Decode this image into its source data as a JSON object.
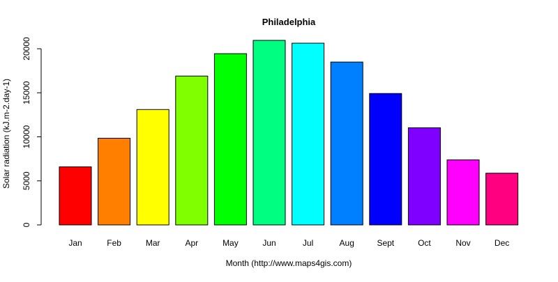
{
  "chart_data": {
    "type": "bar",
    "title": "Philadelphia",
    "xlabel": "Month (http://www.maps4gis.com)",
    "ylabel": "Solar radiation (kJ.m-2.day-1)",
    "categories": [
      "Jan",
      "Feb",
      "Mar",
      "Apr",
      "May",
      "Jun",
      "Jul",
      "Aug",
      "Sept",
      "Oct",
      "Nov",
      "Dec"
    ],
    "values": [
      6590,
      9840,
      13100,
      16900,
      19440,
      20950,
      20630,
      18490,
      14920,
      11030,
      7380,
      5870
    ],
    "colors": [
      "#FF0000",
      "#FF8000",
      "#FFFF00",
      "#80FF00",
      "#00FF00",
      "#00FF80",
      "#00FFFF",
      "#0080FF",
      "#0000FF",
      "#8000FF",
      "#FF00FF",
      "#FF0080"
    ],
    "yticks": [
      0,
      5000,
      10000,
      15000,
      20000
    ],
    "ylim": [
      0,
      20000
    ],
    "grid": false,
    "legend": "none"
  }
}
